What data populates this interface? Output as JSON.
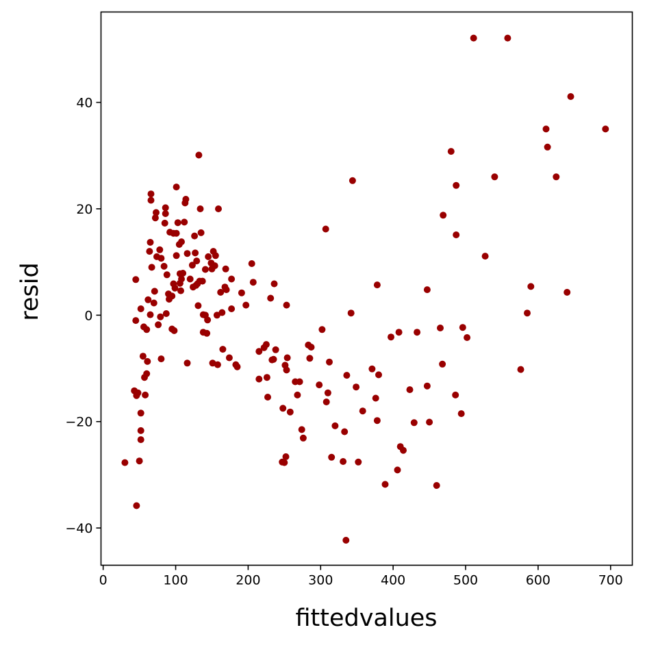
{
  "chart_data": {
    "type": "scatter",
    "title": "",
    "xlabel": "fittedvalues",
    "ylabel": "resid",
    "xlim": [
      -3,
      730
    ],
    "ylim": [
      -47,
      57
    ],
    "xticks": [
      0,
      100,
      200,
      300,
      400,
      500,
      600,
      700
    ],
    "yticks": [
      -40,
      -20,
      0,
      20,
      40
    ],
    "xtick_labels": [
      "0",
      "100",
      "200",
      "300",
      "400",
      "500",
      "600",
      "700"
    ],
    "ytick_labels": [
      "−40",
      "−20",
      "0",
      "20",
      "40"
    ],
    "grid": false,
    "legend": "none",
    "marker_color": "#990000",
    "series": [
      {
        "points": [
          [
            30,
            -27.7
          ],
          [
            43,
            -14.2
          ],
          [
            45,
            -1
          ],
          [
            45,
            6.7
          ],
          [
            46,
            -35.8
          ],
          [
            46,
            -15.1
          ],
          [
            48,
            -14.6
          ],
          [
            50,
            -27.4
          ],
          [
            52,
            1.2
          ],
          [
            52,
            -18.4
          ],
          [
            52,
            -21.7
          ],
          [
            52,
            -23.4
          ],
          [
            55,
            -7.7
          ],
          [
            56,
            -2.2
          ],
          [
            57,
            -11.7
          ],
          [
            58,
            -15
          ],
          [
            60,
            -2.7
          ],
          [
            60,
            -11
          ],
          [
            61,
            -8.7
          ],
          [
            62,
            2.9
          ],
          [
            64,
            12
          ],
          [
            65,
            13.7
          ],
          [
            65,
            0.1
          ],
          [
            66,
            21.6
          ],
          [
            66,
            22.8
          ],
          [
            67,
            9
          ],
          [
            70,
            2.3
          ],
          [
            71,
            4.5
          ],
          [
            72,
            18.3
          ],
          [
            73,
            19.3
          ],
          [
            74,
            11
          ],
          [
            76,
            -1.8
          ],
          [
            78,
            12.3
          ],
          [
            79,
            -0.3
          ],
          [
            80,
            -8.2
          ],
          [
            80,
            10.7
          ],
          [
            84,
            9.2
          ],
          [
            85,
            17.3
          ],
          [
            86,
            19.1
          ],
          [
            86,
            20.2
          ],
          [
            87,
            0.3
          ],
          [
            88,
            7.6
          ],
          [
            90,
            4
          ],
          [
            91,
            3
          ],
          [
            92,
            15.6
          ],
          [
            95,
            3.6
          ],
          [
            95,
            -2.6
          ],
          [
            97,
            15.4
          ],
          [
            97,
            5.9
          ],
          [
            98,
            -2.9
          ],
          [
            99,
            5.1
          ],
          [
            101,
            11.2
          ],
          [
            101,
            15.4
          ],
          [
            101,
            24.1
          ],
          [
            103,
            17.4
          ],
          [
            105,
            13.3
          ],
          [
            106,
            6
          ],
          [
            106,
            7.8
          ],
          [
            107,
            4.6
          ],
          [
            108,
            6.8
          ],
          [
            108,
            13.8
          ],
          [
            110,
            7.9
          ],
          [
            112,
            17.5
          ],
          [
            113,
            21.1
          ],
          [
            114,
            21.8
          ],
          [
            116,
            11.6
          ],
          [
            116,
            -9
          ],
          [
            120,
            6.8
          ],
          [
            123,
            9.4
          ],
          [
            124,
            5.3
          ],
          [
            126,
            14.9
          ],
          [
            127,
            11.7
          ],
          [
            128,
            5.6
          ],
          [
            129,
            10.2
          ],
          [
            130,
            5.9
          ],
          [
            131,
            1.8
          ],
          [
            132,
            30.1
          ],
          [
            133,
            6.4
          ],
          [
            134,
            20
          ],
          [
            135,
            15.5
          ],
          [
            137,
            6.4
          ],
          [
            138,
            0.1
          ],
          [
            138,
            -3.2
          ],
          [
            141,
            8.6
          ],
          [
            141,
            0
          ],
          [
            143,
            -3.4
          ],
          [
            144,
            -0.9
          ],
          [
            145,
            11
          ],
          [
            149,
            9.8
          ],
          [
            150,
            8.7
          ],
          [
            151,
            -9
          ],
          [
            152,
            12
          ],
          [
            154,
            9.3
          ],
          [
            155,
            11.2
          ],
          [
            157,
            0
          ],
          [
            158,
            -9.3
          ],
          [
            159,
            20
          ],
          [
            162,
            4.3
          ],
          [
            164,
            0.5
          ],
          [
            165,
            -6.4
          ],
          [
            168,
            5.3
          ],
          [
            169,
            8.7
          ],
          [
            170,
            4.8
          ],
          [
            174,
            -8
          ],
          [
            177,
            1.2
          ],
          [
            177,
            6.8
          ],
          [
            183,
            -9.3
          ],
          [
            185,
            -9.7
          ],
          [
            191,
            4.2
          ],
          [
            197,
            1.9
          ],
          [
            205,
            9.7
          ],
          [
            207,
            6.2
          ],
          [
            215,
            -6.8
          ],
          [
            215,
            -12
          ],
          [
            222,
            -6.1
          ],
          [
            225,
            -5.5
          ],
          [
            226,
            -11.7
          ],
          [
            227,
            -15.4
          ],
          [
            231,
            3.2
          ],
          [
            233,
            -8.4
          ],
          [
            235,
            -8.3
          ],
          [
            236,
            5.9
          ],
          [
            238,
            -6.5
          ],
          [
            247,
            -27.6
          ],
          [
            248,
            -17.5
          ],
          [
            250,
            -27.7
          ],
          [
            251,
            -9.4
          ],
          [
            252,
            -26.6
          ],
          [
            253,
            1.9
          ],
          [
            253,
            -10.3
          ],
          [
            254,
            -8
          ],
          [
            258,
            -18.2
          ],
          [
            265,
            -12.5
          ],
          [
            268,
            -15
          ],
          [
            271,
            -12.5
          ],
          [
            274,
            -21.5
          ],
          [
            276,
            -23.1
          ],
          [
            283,
            -5.6
          ],
          [
            285,
            -8.1
          ],
          [
            287,
            -6
          ],
          [
            298,
            -13.1
          ],
          [
            302,
            -2.7
          ],
          [
            307,
            16.2
          ],
          [
            308,
            -16.3
          ],
          [
            310,
            -14.6
          ],
          [
            312,
            -8.8
          ],
          [
            315,
            -26.7
          ],
          [
            320,
            -20.8
          ],
          [
            331,
            -27.5
          ],
          [
            333,
            -21.9
          ],
          [
            335,
            -42.3
          ],
          [
            336,
            -11.3
          ],
          [
            342,
            0.4
          ],
          [
            344,
            25.3
          ],
          [
            349,
            -13.5
          ],
          [
            352,
            -27.6
          ],
          [
            358,
            -18
          ],
          [
            371,
            -10.1
          ],
          [
            376,
            -15.6
          ],
          [
            378,
            -19.8
          ],
          [
            378,
            5.7
          ],
          [
            380,
            -11.2
          ],
          [
            389,
            -31.8
          ],
          [
            397,
            -4.1
          ],
          [
            406,
            -29.1
          ],
          [
            408,
            -3.2
          ],
          [
            410,
            -24.7
          ],
          [
            414,
            -25.4
          ],
          [
            423,
            -14
          ],
          [
            429,
            -20.2
          ],
          [
            433,
            -3.2
          ],
          [
            447,
            4.8
          ],
          [
            447,
            -13.3
          ],
          [
            450,
            -20.1
          ],
          [
            460,
            -32
          ],
          [
            465,
            -2.4
          ],
          [
            468,
            -9.2
          ],
          [
            469,
            18.8
          ],
          [
            480,
            30.8
          ],
          [
            486,
            -15
          ],
          [
            487,
            24.4
          ],
          [
            487,
            15.1
          ],
          [
            494,
            -18.5
          ],
          [
            496,
            -2.3
          ],
          [
            502,
            -4.2
          ],
          [
            511,
            52.1
          ],
          [
            527,
            11.1
          ],
          [
            540,
            26
          ],
          [
            558,
            52.1
          ],
          [
            576,
            -10.2
          ],
          [
            585,
            0.4
          ],
          [
            590,
            5.4
          ],
          [
            611,
            35
          ],
          [
            613,
            31.6
          ],
          [
            625,
            26
          ],
          [
            640,
            4.3
          ],
          [
            645,
            41.1
          ],
          [
            693,
            35
          ]
        ]
      }
    ]
  }
}
